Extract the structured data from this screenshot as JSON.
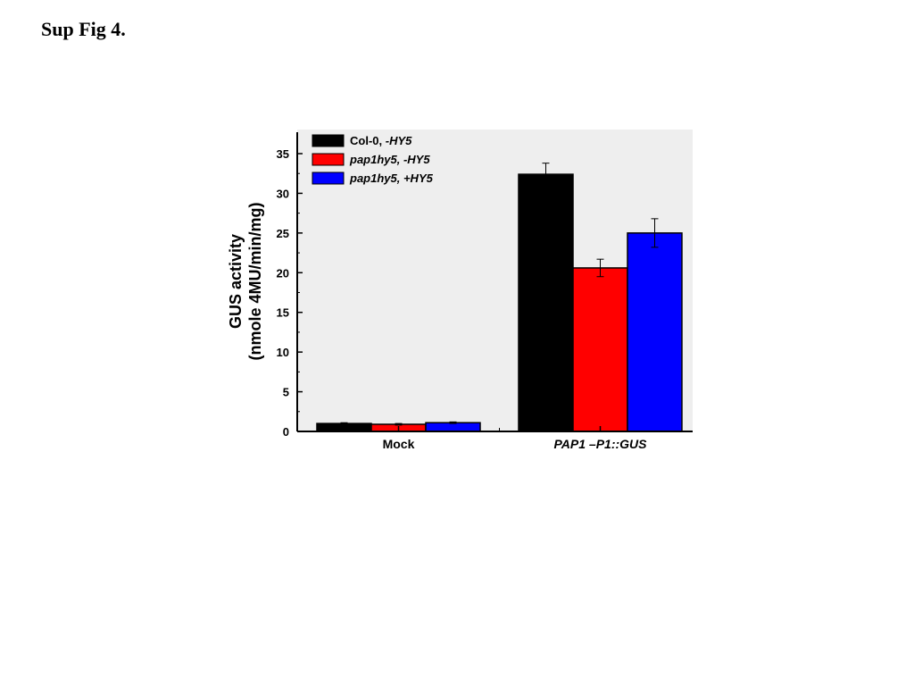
{
  "page": {
    "title": "Sup Fig 4."
  },
  "chart_data": {
    "type": "bar",
    "categories": [
      "Mock",
      "PAP1 –P1::GUS"
    ],
    "category_italic": [
      false,
      true
    ],
    "ylabel_lines": [
      "GUS activity",
      "(nmole 4MU/min/mg)"
    ],
    "xlabel": "",
    "ylim": [
      0,
      37
    ],
    "yticks": [
      0,
      5,
      10,
      15,
      20,
      25,
      30,
      35
    ],
    "grid": false,
    "legend_position": "top-left",
    "series": [
      {
        "name": "Col-0, -HY5",
        "name_parts": [
          {
            "text": "Col-0, ",
            "italic": false
          },
          {
            "text": "-HY5",
            "italic": true
          }
        ],
        "color": "#000000",
        "values": [
          1.0,
          32.4
        ],
        "errors": [
          0.1,
          1.4
        ]
      },
      {
        "name": "pap1hy5, -HY5",
        "name_parts": [
          {
            "text": "pap1hy5, -HY5",
            "italic": true
          }
        ],
        "color": "#ff0000",
        "values": [
          0.9,
          20.6
        ],
        "errors": [
          0.1,
          1.1
        ]
      },
      {
        "name": "pap1hy5, +HY5",
        "name_parts": [
          {
            "text": "pap1hy5, +HY5",
            "italic": true
          }
        ],
        "color": "#0000ff",
        "values": [
          1.1,
          25.0
        ],
        "errors": [
          0.1,
          1.8
        ]
      }
    ]
  }
}
